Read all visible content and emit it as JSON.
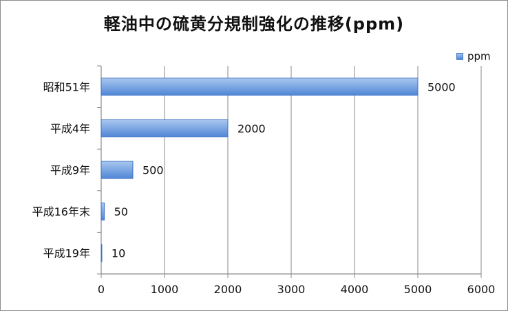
{
  "chart_data": {
    "type": "bar",
    "orientation": "horizontal",
    "title": "軽油中の硫黄分規制強化の推移(ppm)",
    "categories": [
      "昭和51年",
      "平成4年",
      "平成9年",
      "平成16年末",
      "平成19年"
    ],
    "series": [
      {
        "name": "ppm",
        "values": [
          5000,
          2000,
          500,
          50,
          10
        ],
        "color_top": "#a9c7ef",
        "color_bottom": "#4f86d6",
        "border": "#3d73c5"
      }
    ],
    "xlim": [
      0,
      6000
    ],
    "xticks": [
      0,
      1000,
      2000,
      3000,
      4000,
      5000,
      6000
    ],
    "grid": "vertical",
    "legend_position": "top-right",
    "xlabel": "",
    "ylabel": ""
  }
}
